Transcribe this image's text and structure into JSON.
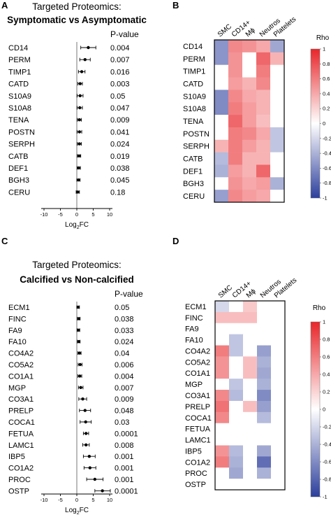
{
  "chart_data": [
    {
      "type": "forest",
      "panel": "A",
      "title": "Targeted Proteomics:",
      "subtitle": "Symptomatic vs Asymptomatic",
      "xlabel": "Log",
      "xlabel_sub": "2",
      "xlabel_tail": "FC",
      "xlim": [
        -12,
        12
      ],
      "xticks": [
        -10,
        -5,
        0,
        5,
        10
      ],
      "pvalue_header": "P-value",
      "proteins": [
        "CD14",
        "PERM",
        "TIMP1",
        "CATD",
        "S10A9",
        "S10A8",
        "TENA",
        "POSTN",
        "SERPH",
        "CATB",
        "DEF1",
        "BGH3",
        "CERU"
      ],
      "log2fc": [
        3.5,
        2.5,
        1.5,
        1.0,
        1.0,
        0.9,
        0.8,
        0.8,
        0.8,
        0.7,
        0.6,
        0.5,
        0.3
      ],
      "ci_low": [
        1.2,
        0.9,
        0.5,
        0.3,
        0.1,
        0.1,
        0.2,
        0.1,
        0.2,
        0.2,
        0.1,
        0.0,
        -0.2
      ],
      "ci_high": [
        5.8,
        4.1,
        2.5,
        1.7,
        1.9,
        1.7,
        1.4,
        1.5,
        1.4,
        1.2,
        1.1,
        1.0,
        0.8
      ],
      "pvalues": [
        "0.004",
        "0.007",
        "0.016",
        "0.003",
        "0.05",
        "0.047",
        "0.009",
        "0.041",
        "0.024",
        "0.019",
        "0.038",
        "0.045",
        "0.18"
      ]
    },
    {
      "type": "heatmap",
      "panel": "B",
      "rows": [
        "CD14",
        "PERM",
        "TIMP1",
        "CATD",
        "S10A9",
        "S10A8",
        "TENA",
        "POSTN",
        "SERPH",
        "CATB",
        "DEF1",
        "BGH3",
        "CERU"
      ],
      "columns": [
        "SMC",
        "CD14+",
        "Mϕ",
        "Neutros",
        "Platelets"
      ],
      "values": [
        [
          -0.55,
          0.55,
          0.5,
          0.4,
          -0.45
        ],
        [
          -0.55,
          0.5,
          0.0,
          0.7,
          0.35
        ],
        [
          0.0,
          0.5,
          0.0,
          0.6,
          0.0
        ],
        [
          0.0,
          0.45,
          0.35,
          0.55,
          0.0
        ],
        [
          -0.6,
          0.55,
          0.4,
          0.35,
          0.0
        ],
        [
          -0.6,
          0.6,
          0.45,
          0.35,
          0.0
        ],
        [
          0.0,
          0.7,
          0.45,
          0.3,
          0.0
        ],
        [
          0.0,
          0.6,
          0.55,
          0.4,
          -0.3
        ],
        [
          0.35,
          0.6,
          0.45,
          0.35,
          -0.3
        ],
        [
          -0.35,
          0.6,
          0.35,
          0.35,
          0.0
        ],
        [
          -0.4,
          0.45,
          0.35,
          0.7,
          0.0
        ],
        [
          0.0,
          0.5,
          0.4,
          0.45,
          -0.4
        ],
        [
          -0.5,
          0.55,
          0.45,
          0.4,
          0.0
        ]
      ],
      "colorbar_title": "Rho",
      "colorbar_ticks": [
        "1",
        "0.8",
        "0.6",
        "0.4",
        "0.2",
        "0",
        "-0.2",
        "-0.4",
        "-0.6",
        "-0.8",
        "-1"
      ],
      "colorbar_range": [
        -1,
        1
      ],
      "colors": {
        "positive": "#e8262a",
        "negative": "#2c3e9c",
        "zero": "#ffffff"
      }
    },
    {
      "type": "forest",
      "panel": "C",
      "title": "Targeted Proteomics:",
      "subtitle": "Calcified vs Non-calcified",
      "xlabel": "Log",
      "xlabel_sub": "2",
      "xlabel_tail": "FC",
      "xlim": [
        -12,
        12
      ],
      "xticks": [
        -10,
        -5,
        0,
        5,
        10
      ],
      "pvalue_header": "P-value",
      "proteins": [
        "ECM1",
        "FINC",
        "FA9",
        "FA10",
        "CO4A2",
        "CO5A2",
        "CO1A1",
        "MGP",
        "CO3A1",
        "PRELP",
        "COCA1",
        "FETUA",
        "LAMC1",
        "IBP5",
        "CO1A2",
        "PROC",
        "OSTP"
      ],
      "log2fc": [
        0.4,
        0.6,
        0.5,
        0.6,
        0.8,
        1.0,
        0.9,
        1.2,
        1.8,
        2.5,
        2.7,
        2.8,
        2.8,
        3.8,
        4.0,
        5.5,
        7.8
      ],
      "ci_low": [
        0.0,
        0.2,
        0.1,
        0.2,
        0.3,
        0.4,
        0.3,
        0.5,
        0.6,
        0.8,
        1.0,
        2.0,
        1.8,
        2.0,
        2.2,
        3.0,
        5.5
      ],
      "ci_high": [
        0.8,
        1.0,
        0.9,
        1.0,
        1.3,
        1.6,
        1.5,
        1.9,
        3.0,
        4.2,
        4.4,
        3.6,
        3.8,
        5.6,
        5.8,
        8.0,
        10.2
      ],
      "pvalues": [
        "0.05",
        "0.038",
        "0.033",
        "0.024",
        "0.04",
        "0.006",
        "0.004",
        "0.007",
        "0.009",
        "0.048",
        "0.03",
        "0.0001",
        "0.008",
        "0.001",
        "0.001",
        "0.001",
        "0.0001"
      ]
    },
    {
      "type": "heatmap",
      "panel": "D",
      "rows": [
        "ECM1",
        "FINC",
        "FA9",
        "FA10",
        "CO4A2",
        "CO5A2",
        "CO1A1",
        "MGP",
        "CO3A1",
        "PRELP",
        "COCA1",
        "FETUA",
        "LAMC1",
        "IBP5",
        "CO1A2",
        "PROC",
        "OSTP"
      ],
      "columns": [
        "SMC",
        "CD14+",
        "Mϕ",
        "Neutros",
        "Platelets"
      ],
      "values": [
        [
          -0.2,
          0.0,
          0.25,
          0.0,
          0.0
        ],
        [
          0.3,
          0.3,
          0.3,
          0.0,
          0.0
        ],
        [
          0.0,
          0.0,
          0.0,
          0.0,
          0.0
        ],
        [
          0.0,
          -0.3,
          0.0,
          0.0,
          0.0
        ],
        [
          0.6,
          -0.3,
          0.0,
          -0.5,
          0.0
        ],
        [
          0.5,
          0.0,
          0.3,
          -0.4,
          0.0
        ],
        [
          0.5,
          0.0,
          0.3,
          -0.45,
          0.0
        ],
        [
          0.0,
          -0.3,
          0.0,
          -0.4,
          0.0
        ],
        [
          0.55,
          -0.35,
          0.0,
          -0.6,
          0.0
        ],
        [
          0.65,
          0.0,
          0.3,
          -0.5,
          0.0
        ],
        [
          0.55,
          0.0,
          0.0,
          -0.35,
          0.0
        ],
        [
          0.0,
          0.0,
          0.0,
          0.0,
          0.0
        ],
        [
          0.0,
          0.0,
          0.0,
          0.0,
          0.0
        ],
        [
          0.5,
          -0.35,
          0.0,
          -0.45,
          0.0
        ],
        [
          0.6,
          -0.4,
          0.0,
          -0.75,
          0.0
        ],
        [
          0.0,
          -0.45,
          0.0,
          -0.4,
          0.0
        ],
        [
          0.0,
          0.0,
          0.0,
          0.0,
          0.0
        ]
      ],
      "colorbar_title": "Rho",
      "colorbar_ticks": [
        "1",
        "0.8",
        "0.6",
        "0.4",
        "0.2",
        "0",
        "-0.2",
        "-0.4",
        "-0.6",
        "-0.8",
        "-1"
      ],
      "colorbar_range": [
        -1,
        1
      ],
      "colors": {
        "positive": "#e8262a",
        "negative": "#2c3e9c",
        "zero": "#ffffff"
      }
    }
  ]
}
